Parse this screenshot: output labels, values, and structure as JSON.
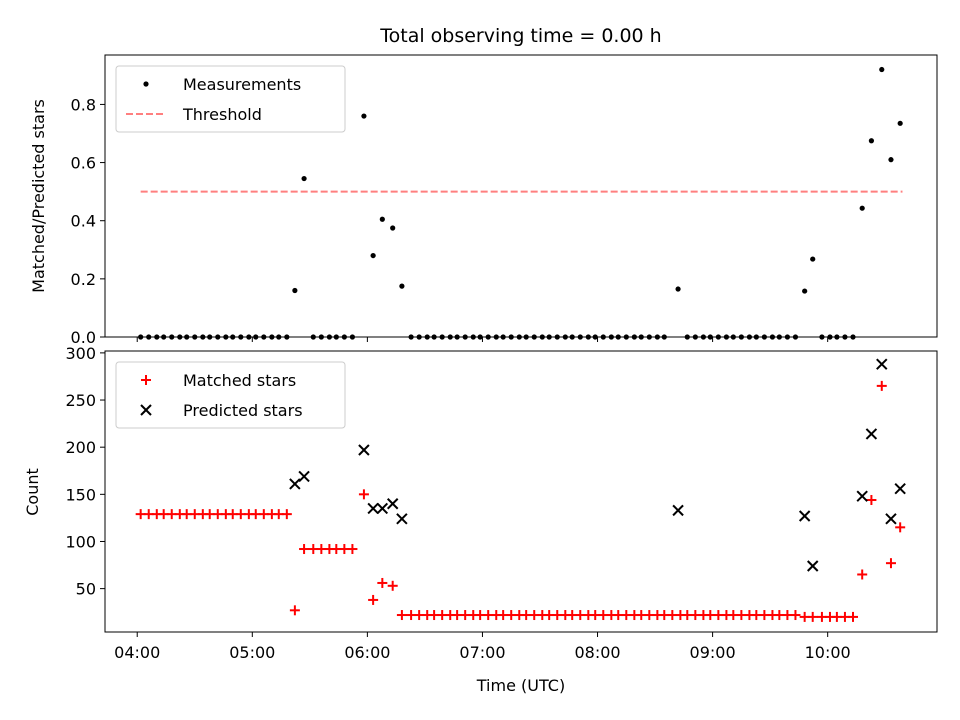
{
  "chart_data": [
    {
      "type": "scatter",
      "title": "Total observing time = 0.00 h",
      "xlabel": "",
      "ylabel": "Matched/Predicted stars",
      "xlim": [
        3.72,
        10.95
      ],
      "ylim": [
        0,
        0.97
      ],
      "x_ticks": [
        4,
        5,
        6,
        7,
        8,
        9,
        10
      ],
      "x_tick_labels": [
        "04:00",
        "05:00",
        "06:00",
        "07:00",
        "08:00",
        "09:00",
        "10:00"
      ],
      "y_ticks": [
        0.0,
        0.2,
        0.4,
        0.6,
        0.8
      ],
      "y_tick_labels": [
        "0.0",
        "0.2",
        "0.4",
        "0.6",
        "0.8"
      ],
      "grid": false,
      "legend": {
        "placement": "top-left",
        "entries": [
          "Measurements",
          "Threshold"
        ]
      },
      "series": [
        {
          "name": "Measurements",
          "color": "#000000",
          "marker": "dot",
          "points": [
            [
              4.03,
              0
            ],
            [
              4.1,
              0
            ],
            [
              4.17,
              0
            ],
            [
              4.23,
              0
            ],
            [
              4.3,
              0
            ],
            [
              4.37,
              0
            ],
            [
              4.43,
              0
            ],
            [
              4.5,
              0
            ],
            [
              4.57,
              0
            ],
            [
              4.63,
              0
            ],
            [
              4.7,
              0
            ],
            [
              4.77,
              0
            ],
            [
              4.83,
              0
            ],
            [
              4.9,
              0
            ],
            [
              4.97,
              0
            ],
            [
              5.03,
              0
            ],
            [
              5.1,
              0
            ],
            [
              5.17,
              0
            ],
            [
              5.23,
              0
            ],
            [
              5.3,
              0
            ],
            [
              5.37,
              0.16
            ],
            [
              5.45,
              0.545
            ],
            [
              5.53,
              0
            ],
            [
              5.6,
              0
            ],
            [
              5.67,
              0
            ],
            [
              5.73,
              0
            ],
            [
              5.8,
              0
            ],
            [
              5.87,
              0
            ],
            [
              5.97,
              0.76
            ],
            [
              6.05,
              0.28
            ],
            [
              6.13,
              0.405
            ],
            [
              6.22,
              0.375
            ],
            [
              6.3,
              0.175
            ],
            [
              6.38,
              0
            ],
            [
              6.45,
              0
            ],
            [
              6.52,
              0
            ],
            [
              6.58,
              0
            ],
            [
              6.65,
              0
            ],
            [
              6.72,
              0
            ],
            [
              6.78,
              0
            ],
            [
              6.85,
              0
            ],
            [
              6.92,
              0
            ],
            [
              6.98,
              0
            ],
            [
              7.05,
              0
            ],
            [
              7.12,
              0
            ],
            [
              7.18,
              0
            ],
            [
              7.25,
              0
            ],
            [
              7.32,
              0
            ],
            [
              7.38,
              0
            ],
            [
              7.45,
              0
            ],
            [
              7.52,
              0
            ],
            [
              7.58,
              0
            ],
            [
              7.65,
              0
            ],
            [
              7.72,
              0
            ],
            [
              7.78,
              0
            ],
            [
              7.85,
              0
            ],
            [
              7.92,
              0
            ],
            [
              7.98,
              0
            ],
            [
              8.05,
              0
            ],
            [
              8.12,
              0
            ],
            [
              8.18,
              0
            ],
            [
              8.25,
              0
            ],
            [
              8.32,
              0
            ],
            [
              8.38,
              0
            ],
            [
              8.45,
              0
            ],
            [
              8.52,
              0
            ],
            [
              8.58,
              0
            ],
            [
              8.7,
              0.165
            ],
            [
              8.78,
              0
            ],
            [
              8.85,
              0
            ],
            [
              8.92,
              0
            ],
            [
              8.98,
              0
            ],
            [
              9.05,
              0
            ],
            [
              9.12,
              0
            ],
            [
              9.18,
              0
            ],
            [
              9.25,
              0
            ],
            [
              9.32,
              0
            ],
            [
              9.38,
              0
            ],
            [
              9.45,
              0
            ],
            [
              9.52,
              0
            ],
            [
              9.58,
              0
            ],
            [
              9.65,
              0
            ],
            [
              9.72,
              0
            ],
            [
              9.8,
              0.158
            ],
            [
              9.87,
              0.268
            ],
            [
              9.95,
              0
            ],
            [
              10.02,
              0
            ],
            [
              10.08,
              0
            ],
            [
              10.15,
              0
            ],
            [
              10.22,
              0
            ],
            [
              10.3,
              0.443
            ],
            [
              10.38,
              0.675
            ],
            [
              10.47,
              0.92
            ],
            [
              10.55,
              0.61
            ],
            [
              10.63,
              0.735
            ]
          ]
        },
        {
          "name": "Threshold",
          "color": "#ff7f7f",
          "style": "dashed",
          "line": [
            [
              4.03,
              0.5
            ],
            [
              10.65,
              0.5
            ]
          ]
        }
      ]
    },
    {
      "type": "scatter",
      "title": "",
      "xlabel": "Time (UTC)",
      "ylabel": "Count",
      "xlim": [
        3.72,
        10.95
      ],
      "ylim": [
        4,
        302
      ],
      "x_ticks": [
        4,
        5,
        6,
        7,
        8,
        9,
        10
      ],
      "x_tick_labels": [
        "04:00",
        "05:00",
        "06:00",
        "07:00",
        "08:00",
        "09:00",
        "10:00"
      ],
      "y_ticks": [
        50,
        100,
        150,
        200,
        250,
        300
      ],
      "y_tick_labels": [
        "50",
        "100",
        "150",
        "200",
        "250",
        "300"
      ],
      "grid": false,
      "legend": {
        "placement": "top-left",
        "entries": [
          "Matched stars",
          "Predicted stars"
        ]
      },
      "series": [
        {
          "name": "Matched stars",
          "color": "#ff0000",
          "marker": "plus",
          "points": [
            [
              4.03,
              129
            ],
            [
              4.1,
              129
            ],
            [
              4.17,
              129
            ],
            [
              4.23,
              129
            ],
            [
              4.3,
              129
            ],
            [
              4.37,
              129
            ],
            [
              4.43,
              129
            ],
            [
              4.5,
              129
            ],
            [
              4.57,
              129
            ],
            [
              4.63,
              129
            ],
            [
              4.7,
              129
            ],
            [
              4.77,
              129
            ],
            [
              4.83,
              129
            ],
            [
              4.9,
              129
            ],
            [
              4.97,
              129
            ],
            [
              5.03,
              129
            ],
            [
              5.1,
              129
            ],
            [
              5.17,
              129
            ],
            [
              5.23,
              129
            ],
            [
              5.3,
              129
            ],
            [
              5.37,
              27
            ],
            [
              5.45,
              92
            ],
            [
              5.53,
              92
            ],
            [
              5.6,
              92
            ],
            [
              5.67,
              92
            ],
            [
              5.73,
              92
            ],
            [
              5.8,
              92
            ],
            [
              5.87,
              92
            ],
            [
              5.97,
              150
            ],
            [
              6.05,
              38
            ],
            [
              6.13,
              56
            ],
            [
              6.22,
              53
            ],
            [
              6.3,
              22
            ],
            [
              6.38,
              22
            ],
            [
              6.45,
              22
            ],
            [
              6.52,
              22
            ],
            [
              6.58,
              22
            ],
            [
              6.65,
              22
            ],
            [
              6.72,
              22
            ],
            [
              6.78,
              22
            ],
            [
              6.85,
              22
            ],
            [
              6.92,
              22
            ],
            [
              6.98,
              22
            ],
            [
              7.05,
              22
            ],
            [
              7.12,
              22
            ],
            [
              7.18,
              22
            ],
            [
              7.25,
              22
            ],
            [
              7.32,
              22
            ],
            [
              7.38,
              22
            ],
            [
              7.45,
              22
            ],
            [
              7.52,
              22
            ],
            [
              7.58,
              22
            ],
            [
              7.65,
              22
            ],
            [
              7.72,
              22
            ],
            [
              7.78,
              22
            ],
            [
              7.85,
              22
            ],
            [
              7.92,
              22
            ],
            [
              7.98,
              22
            ],
            [
              8.05,
              22
            ],
            [
              8.12,
              22
            ],
            [
              8.18,
              22
            ],
            [
              8.25,
              22
            ],
            [
              8.32,
              22
            ],
            [
              8.38,
              22
            ],
            [
              8.45,
              22
            ],
            [
              8.52,
              22
            ],
            [
              8.58,
              22
            ],
            [
              8.65,
              22
            ],
            [
              8.72,
              22
            ],
            [
              8.78,
              22
            ],
            [
              8.85,
              22
            ],
            [
              8.92,
              22
            ],
            [
              8.98,
              22
            ],
            [
              9.05,
              22
            ],
            [
              9.12,
              22
            ],
            [
              9.18,
              22
            ],
            [
              9.25,
              22
            ],
            [
              9.32,
              22
            ],
            [
              9.38,
              22
            ],
            [
              9.45,
              22
            ],
            [
              9.52,
              22
            ],
            [
              9.58,
              22
            ],
            [
              9.65,
              22
            ],
            [
              9.72,
              22
            ],
            [
              9.8,
              20
            ],
            [
              9.87,
              20
            ],
            [
              9.95,
              20
            ],
            [
              10.02,
              20
            ],
            [
              10.08,
              20
            ],
            [
              10.15,
              20
            ],
            [
              10.22,
              20
            ],
            [
              10.3,
              65
            ],
            [
              10.38,
              144
            ],
            [
              10.47,
              265
            ],
            [
              10.55,
              77
            ],
            [
              10.63,
              115
            ]
          ]
        },
        {
          "name": "Predicted stars",
          "color": "#000000",
          "marker": "x",
          "points": [
            [
              5.37,
              161
            ],
            [
              5.45,
              169
            ],
            [
              5.97,
              197
            ],
            [
              6.05,
              135
            ],
            [
              6.13,
              135
            ],
            [
              6.22,
              140
            ],
            [
              6.3,
              124
            ],
            [
              8.7,
              133
            ],
            [
              9.8,
              127
            ],
            [
              9.87,
              74
            ],
            [
              10.3,
              148
            ],
            [
              10.38,
              214
            ],
            [
              10.47,
              288
            ],
            [
              10.55,
              124
            ],
            [
              10.63,
              156
            ]
          ]
        }
      ]
    }
  ]
}
